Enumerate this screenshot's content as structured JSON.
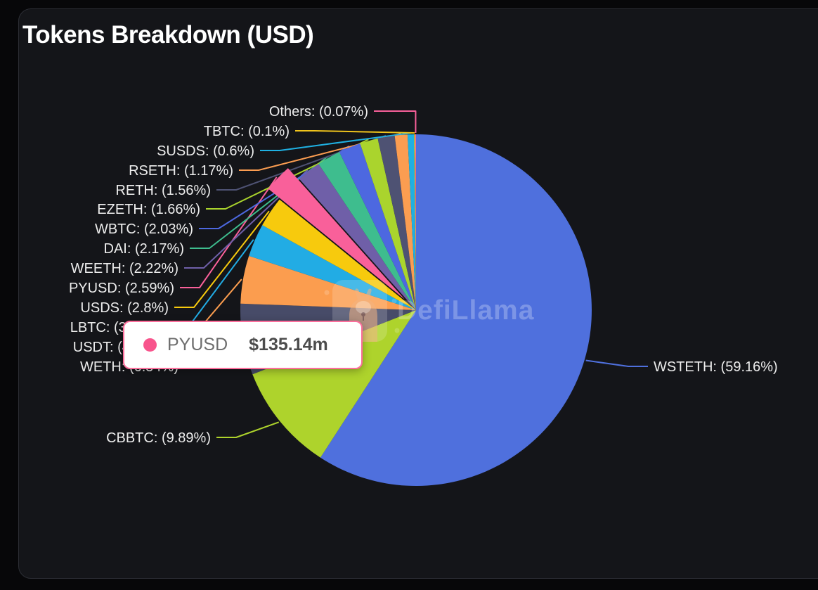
{
  "watermark": {
    "text": "DefiLlama"
  },
  "tooltip": {
    "token": "PYUSD",
    "value": "$135.14m",
    "marker_color": "#f8548c",
    "border_color": "#fb6e9b"
  },
  "chart_data": {
    "type": "pie",
    "title": "Tokens Breakdown (USD)",
    "unit": "USD",
    "label_format": "NAME: (PCT%)",
    "legend_position": "none",
    "start_angle_deg": 90,
    "direction": "clockwise",
    "highlighted_slice": "PYUSD",
    "highlighted_value": "$135.14m",
    "slices": [
      {
        "name": "WSTETH",
        "percent": 59.16,
        "percent_label": "59.16",
        "color": "#4f70dd",
        "label_side": "right"
      },
      {
        "name": "CBBTC",
        "percent": 9.89,
        "percent_label": "9.89",
        "color": "#aed32c",
        "label_side": "left"
      },
      {
        "name": "WETH",
        "percent": 6.54,
        "percent_label": "6.54",
        "color": "#474b68",
        "label_side": "left"
      },
      {
        "name": "USDT",
        "percent": 4.4,
        "percent_label": "4.4",
        "color": "#fb9d4f",
        "label_side": "left"
      },
      {
        "name": "LBTC",
        "percent": 3.04,
        "percent_label": "3.04",
        "color": "#22ace4",
        "label_side": "left"
      },
      {
        "name": "USDS",
        "percent": 2.8,
        "percent_label": "2.8",
        "color": "#f7ca0d",
        "label_side": "left"
      },
      {
        "name": "PYUSD",
        "percent": 2.59,
        "percent_label": "2.59",
        "color": "#f9609a",
        "label_side": "left"
      },
      {
        "name": "WEETH",
        "percent": 2.22,
        "percent_label": "2.22",
        "color": "#6f5fa8",
        "label_side": "left"
      },
      {
        "name": "DAI",
        "percent": 2.17,
        "percent_label": "2.17",
        "color": "#3ebd8e",
        "label_side": "left"
      },
      {
        "name": "WBTC",
        "percent": 2.03,
        "percent_label": "2.03",
        "color": "#4d68e0",
        "label_side": "left"
      },
      {
        "name": "EZETH",
        "percent": 1.66,
        "percent_label": "1.66",
        "color": "#aad42d",
        "label_side": "left"
      },
      {
        "name": "RETH",
        "percent": 1.56,
        "percent_label": "1.56",
        "color": "#4e5273",
        "label_side": "left"
      },
      {
        "name": "RSETH",
        "percent": 1.17,
        "percent_label": "1.17",
        "color": "#fb9d51",
        "label_side": "left"
      },
      {
        "name": "SUSDS",
        "percent": 0.6,
        "percent_label": "0.6",
        "color": "#1fb0e2",
        "label_side": "left"
      },
      {
        "name": "TBTC",
        "percent": 0.1,
        "percent_label": "0.1",
        "color": "#f0c41c",
        "label_side": "left"
      },
      {
        "name": "Others",
        "percent": 0.07,
        "percent_label": "0.07",
        "color": "#f9609a",
        "label_side": "left"
      }
    ]
  }
}
